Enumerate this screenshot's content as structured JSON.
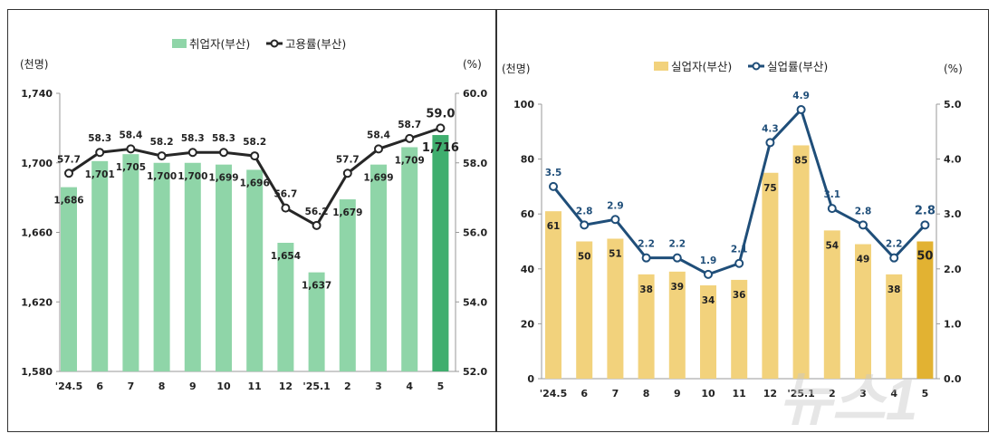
{
  "chart_data": [
    {
      "type": "bar+line",
      "categories": [
        "'24.5",
        "6",
        "7",
        "8",
        "9",
        "10",
        "11",
        "12",
        "'25.1",
        "2",
        "3",
        "4",
        "5"
      ],
      "series": [
        {
          "name": "취업자(부산)",
          "type": "bar",
          "axis": "left",
          "values": [
            1686,
            1701,
            1705,
            1700,
            1700,
            1699,
            1696,
            1654,
            1637,
            1679,
            1699,
            1709,
            1716
          ],
          "color": "#8fd5a8",
          "highlight_color": "#3fae6e"
        },
        {
          "name": "고용률(부산)",
          "type": "line",
          "axis": "right",
          "values": [
            57.7,
            58.3,
            58.4,
            58.2,
            58.3,
            58.3,
            58.2,
            56.7,
            56.2,
            57.7,
            58.4,
            58.7,
            59.0
          ],
          "color": "#262626"
        }
      ],
      "left_axis": {
        "unit": "(천명)",
        "ylim": [
          1580,
          1740
        ],
        "ticks": [
          "1,580",
          "1,620",
          "1,660",
          "1,700",
          "1,740"
        ]
      },
      "right_axis": {
        "unit": "(%)",
        "ylim": [
          52.0,
          60.0
        ],
        "ticks": [
          "52.0",
          "54.0",
          "56.0",
          "58.0",
          "60.0"
        ]
      },
      "legend": "top-center",
      "grid": false
    },
    {
      "type": "bar+line",
      "categories": [
        "'24.5",
        "6",
        "7",
        "8",
        "9",
        "10",
        "11",
        "12",
        "'25.1",
        "2",
        "3",
        "4",
        "5"
      ],
      "series": [
        {
          "name": "실업자(부산)",
          "type": "bar",
          "axis": "left",
          "values": [
            61,
            50,
            51,
            38,
            39,
            34,
            36,
            75,
            85,
            54,
            49,
            38,
            50
          ],
          "color": "#f2d27c",
          "highlight_color": "#e2b232"
        },
        {
          "name": "실업률(부산)",
          "type": "line",
          "axis": "right",
          "values": [
            3.5,
            2.8,
            2.9,
            2.2,
            2.2,
            1.9,
            2.1,
            4.3,
            4.9,
            3.1,
            2.8,
            2.2,
            2.8
          ],
          "color": "#1f4e79"
        }
      ],
      "left_axis": {
        "unit": "(천명)",
        "ylim": [
          0,
          100
        ],
        "ticks": [
          "0",
          "20",
          "40",
          "60",
          "80",
          "100"
        ]
      },
      "right_axis": {
        "unit": "(%)",
        "ylim": [
          0.0,
          5.0
        ],
        "ticks": [
          "0.0",
          "1.0",
          "2.0",
          "3.0",
          "4.0",
          "5.0"
        ]
      },
      "legend": "top-center",
      "grid": false
    }
  ],
  "watermark": "뉴스1"
}
